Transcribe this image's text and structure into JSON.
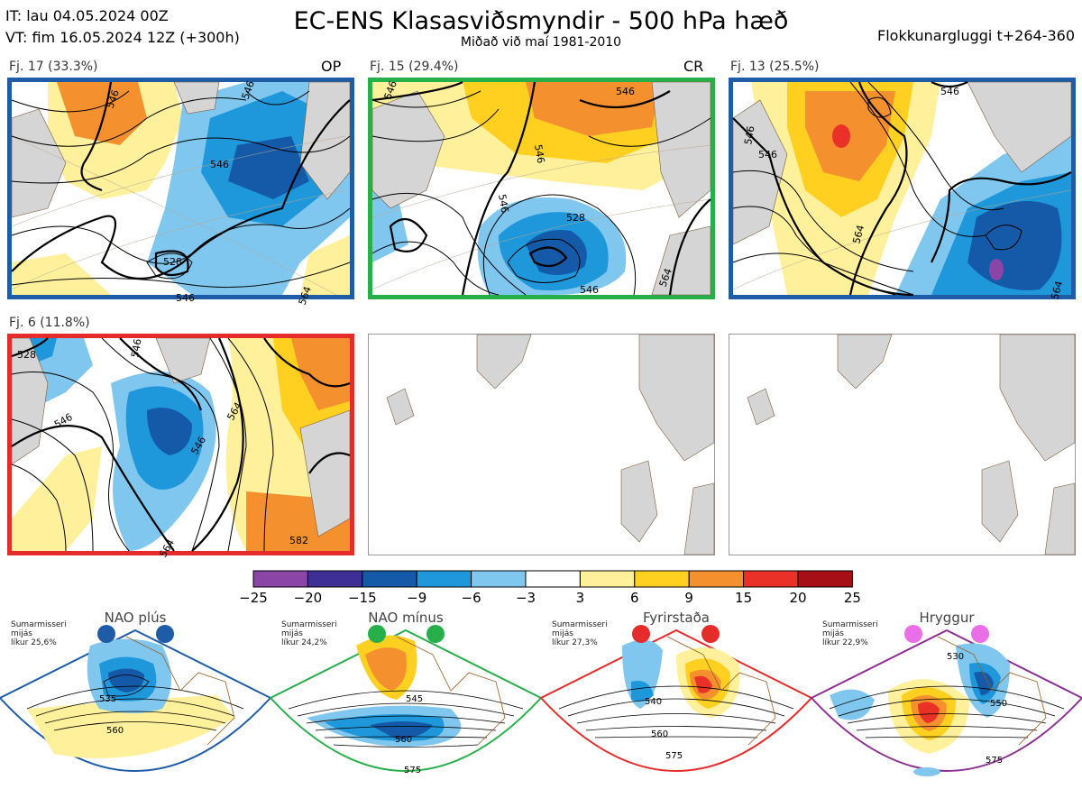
{
  "header": {
    "it_line": "IT: lau 04.05.2024 00Z",
    "vt_line": "VT: fim 16.05.2024 12Z  (+300h)",
    "title": "EC-ENS Klasasviðsmyndir - 500 hPa hæð",
    "subtitle": "Miðað við maí 1981-2010",
    "window": "Flokkunargluggi t+264-360"
  },
  "panels": [
    {
      "label": "Fj. 17 (33.3%)",
      "tag": "OP",
      "border": "#1f5ca8",
      "contours": [
        "546",
        "546",
        "528",
        "546",
        "546",
        "564"
      ]
    },
    {
      "label": "Fj. 15 (29.4%)",
      "tag": "CR",
      "border": "#27b04a",
      "contours": [
        "546",
        "546",
        "546",
        "528",
        "546",
        "546",
        "564"
      ]
    },
    {
      "label": "Fj. 13 (25.5%)",
      "tag": "",
      "border": "#1f5ca8",
      "contours": [
        "546",
        "546",
        "546",
        "564",
        "564"
      ]
    },
    {
      "label": "Fj. 6 (11.8%)",
      "tag": "",
      "border": "#e62b2b",
      "contours": [
        "528",
        "546",
        "546",
        "546",
        "564",
        "564",
        "582"
      ]
    }
  ],
  "colorbar": {
    "ticks": [
      "−25",
      "−20",
      "−15",
      "−9",
      "−6",
      "−3",
      "3",
      "6",
      "9",
      "15",
      "20",
      "25"
    ],
    "colors": [
      "#8b45a6",
      "#3e2f96",
      "#145aa8",
      "#1f97db",
      "#80c7ef",
      "#ffffff",
      "#fff19b",
      "#ffd01f",
      "#f5902f",
      "#ea3128",
      "#a50f15"
    ]
  },
  "regimes": [
    {
      "name": "NAO plús",
      "note1": "Sumarmisseri",
      "note2": "mijás",
      "note3": "líkur 25,6%",
      "color": "#1f5ca8",
      "c1": "535",
      "c2": "560"
    },
    {
      "name": "NAO mínus",
      "note1": "Sumarmisseri",
      "note2": "mijás",
      "note3": "líkur 24,2%",
      "color": "#27b04a",
      "c1": "545",
      "c2": "560",
      "c3": "575"
    },
    {
      "name": "Fyrirstaða",
      "note1": "Sumarmisseri",
      "note2": "mijás",
      "note3": "líkur 27,3%",
      "color": "#e62b2b",
      "c1": "540",
      "c2": "560",
      "c3": "575"
    },
    {
      "name": "Hryggur",
      "note1": "Sumarmisseri",
      "note2": "mijás",
      "note3": "líkur 22,9%",
      "color": "#8e2f94",
      "marker": "#ea6ee8",
      "c1": "530",
      "c2": "550",
      "c3": "575"
    }
  ]
}
